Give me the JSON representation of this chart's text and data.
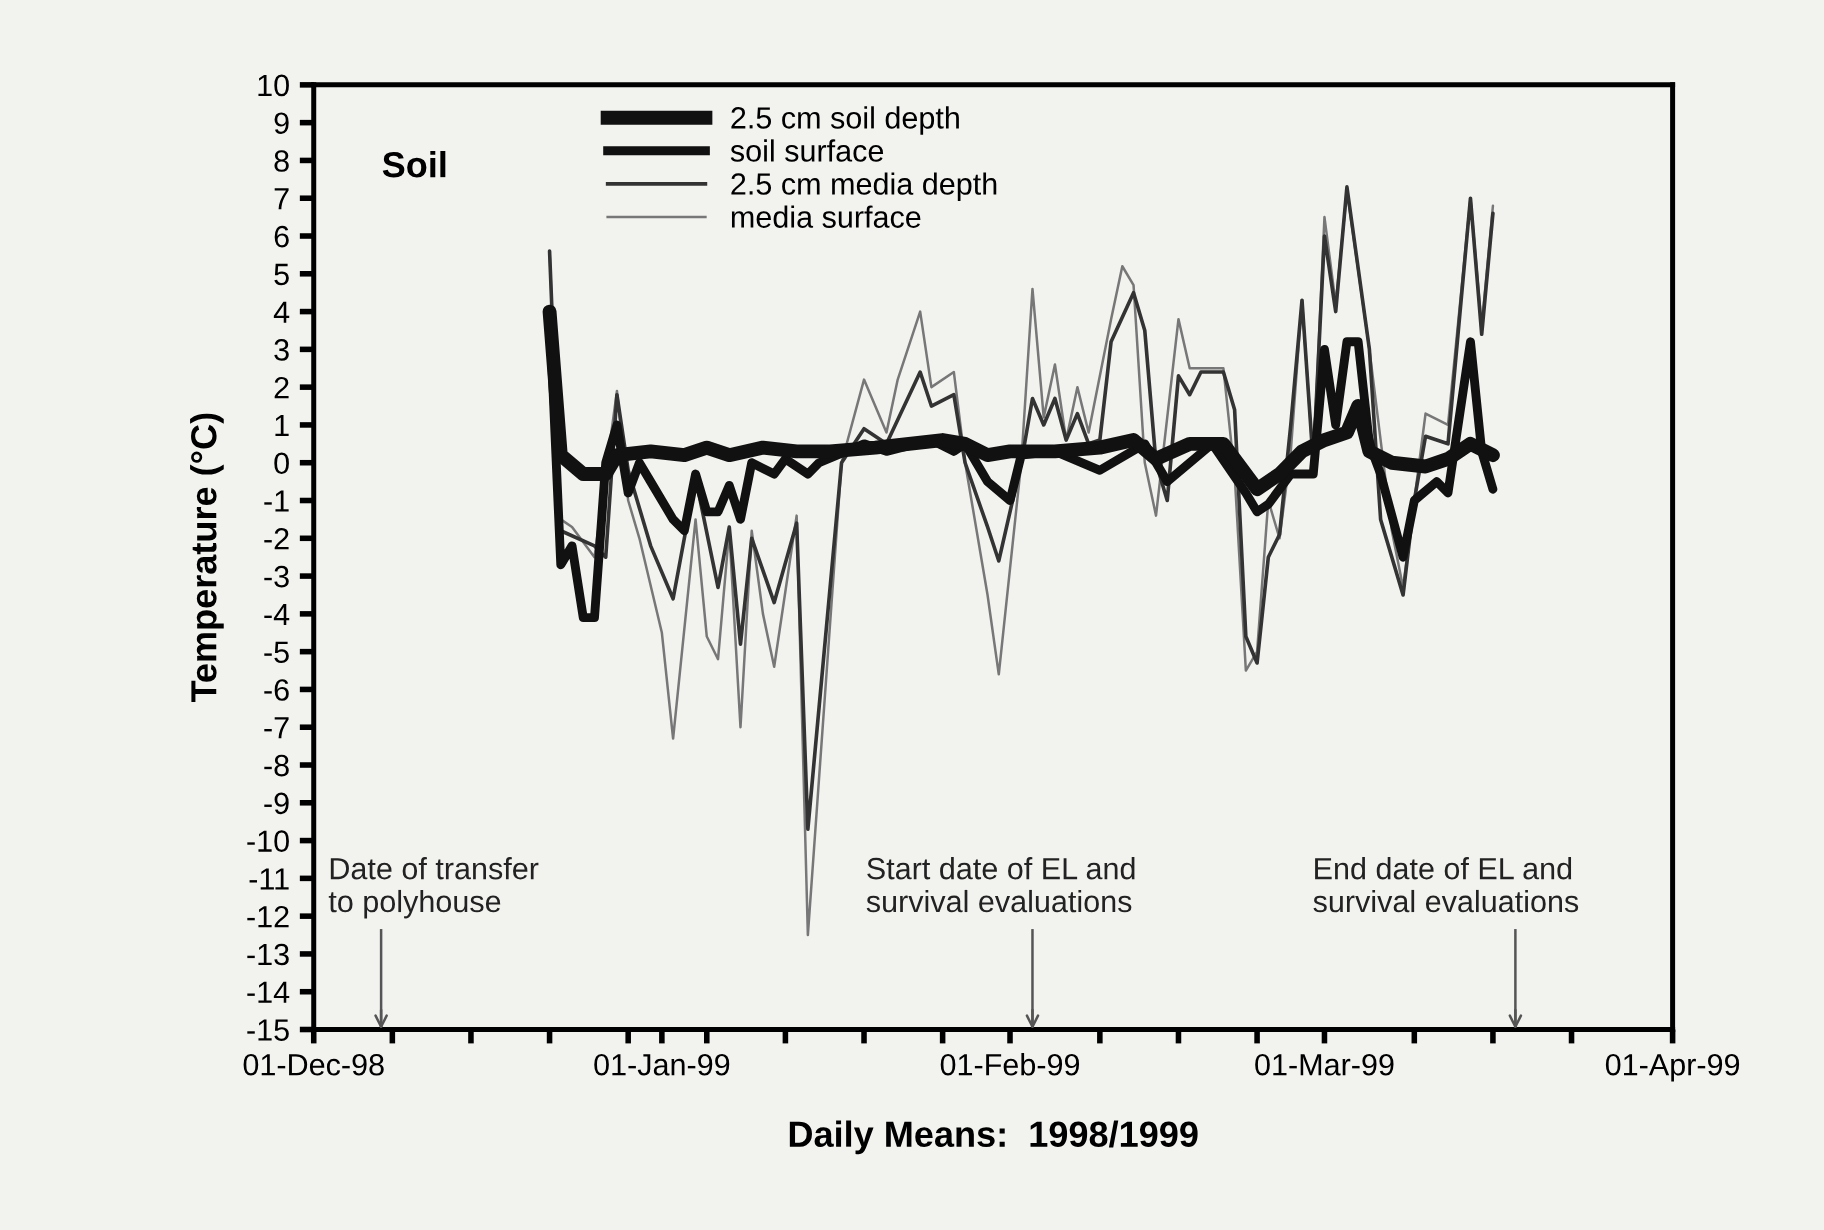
{
  "chart_data": {
    "type": "line",
    "xlabel": "Daily Means:  1998/1999",
    "ylabel": "Temperature (°C)",
    "xlim": [
      "1998-12-01",
      "1999-04-01"
    ],
    "ylim": [
      -15,
      10
    ],
    "yticks": [
      -15,
      -14,
      -13,
      -12,
      -11,
      -10,
      -9,
      -8,
      -7,
      -6,
      -5,
      -4,
      -3,
      -2,
      -1,
      0,
      1,
      2,
      3,
      4,
      5,
      6,
      7,
      8,
      9,
      10
    ],
    "xticks": [
      {
        "value": "1998-12-01",
        "label": "01-Dec-98"
      },
      {
        "value": "1998-12-08",
        "label": null
      },
      {
        "value": "1998-12-15",
        "label": null
      },
      {
        "value": "1998-12-22",
        "label": null
      },
      {
        "value": "1998-12-29",
        "label": null
      },
      {
        "value": "1999-01-01",
        "label": "01-Jan-99"
      },
      {
        "value": "1999-01-05",
        "label": null
      },
      {
        "value": "1999-01-12",
        "label": null
      },
      {
        "value": "1999-01-19",
        "label": null
      },
      {
        "value": "1999-01-26",
        "label": null
      },
      {
        "value": "1999-02-01",
        "label": "01-Feb-99"
      },
      {
        "value": "1999-02-09",
        "label": null
      },
      {
        "value": "1999-02-16",
        "label": null
      },
      {
        "value": "1999-02-23",
        "label": null
      },
      {
        "value": "1999-03-01",
        "label": "01-Mar-99"
      },
      {
        "value": "1999-03-09",
        "label": null
      },
      {
        "value": "1999-03-16",
        "label": null
      },
      {
        "value": "1999-03-23",
        "label": null
      },
      {
        "value": "1999-04-01",
        "label": "01-Apr-99"
      }
    ],
    "grid": false,
    "legend": "top",
    "marker": "none",
    "line_style": "solid",
    "annotations": [
      "Soil"
    ],
    "ref_lines": [
      {
        "axis": "x",
        "value": "1998-12-07",
        "label": "Date of transfer\nto polyhouse",
        "color": "#555555"
      },
      {
        "axis": "x",
        "value": "1999-02-03",
        "label": "Start date of EL and\nsurvival evaluations",
        "color": "#555555"
      },
      {
        "axis": "x",
        "value": "1999-03-18",
        "label": "End date of EL and\nsurvival evaluations",
        "color": "#555555"
      }
    ],
    "series": [
      {
        "name": "2.5 cm soil depth",
        "color": "#111111",
        "x": [
          "1998-12-22",
          "1998-12-23",
          "1998-12-25",
          "1998-12-27",
          "1998-12-28",
          "1998-12-31",
          "1999-01-03",
          "1999-01-05",
          "1999-01-07",
          "1999-01-10",
          "1999-01-13",
          "1999-01-16",
          "1999-01-20",
          "1999-01-23",
          "1999-01-26",
          "1999-01-28",
          "1999-01-30",
          "1999-02-01",
          "1999-02-05",
          "1999-02-09",
          "1999-02-12",
          "1999-02-14",
          "1999-02-17",
          "1999-02-20",
          "1999-02-23",
          "1999-02-25",
          "1999-02-27",
          "1999-03-01",
          "1999-03-03",
          "1999-03-04",
          "1999-03-05",
          "1999-03-07",
          "1999-03-10",
          "1999-03-12",
          "1999-03-14",
          "1999-03-16"
        ],
        "values": [
          4.0,
          0.2,
          -0.3,
          -0.3,
          0.2,
          0.3,
          0.2,
          0.4,
          0.2,
          0.4,
          0.3,
          0.3,
          0.4,
          0.5,
          0.6,
          0.5,
          0.2,
          0.3,
          0.3,
          0.4,
          0.6,
          0.1,
          0.5,
          0.5,
          -0.7,
          -0.3,
          0.3,
          0.6,
          0.8,
          1.5,
          0.3,
          0.0,
          -0.1,
          0.1,
          0.5,
          0.2
        ]
      },
      {
        "name": "soil surface",
        "color": "#111111",
        "x": [
          "1998-12-22",
          "1998-12-23",
          "1998-12-24",
          "1998-12-25",
          "1998-12-26",
          "1998-12-27",
          "1998-12-28",
          "1998-12-29",
          "1998-12-30",
          "1998-12-31",
          "1999-01-02",
          "1999-01-03",
          "1999-01-04",
          "1999-01-05",
          "1999-01-06",
          "1999-01-07",
          "1999-01-08",
          "1999-01-09",
          "1999-01-11",
          "1999-01-12",
          "1999-01-14",
          "1999-01-15",
          "1999-01-19",
          "1999-01-21",
          "1999-01-25",
          "1999-01-27",
          "1999-01-28",
          "1999-01-30",
          "1999-02-01",
          "1999-02-02",
          "1999-02-05",
          "1999-02-09",
          "1999-02-13",
          "1999-02-15",
          "1999-02-19",
          "1999-02-22",
          "1999-02-23",
          "1999-02-24",
          "1999-02-26",
          "1999-02-28",
          "1999-03-01",
          "1999-03-02",
          "1999-03-03",
          "1999-03-04",
          "1999-03-05",
          "1999-03-06",
          "1999-03-08",
          "1999-03-09",
          "1999-03-11",
          "1999-03-12",
          "1999-03-14",
          "1999-03-15",
          "1999-03-16"
        ],
        "values": [
          4.0,
          -2.7,
          -2.2,
          -4.1,
          -4.1,
          0.0,
          1.0,
          -0.8,
          0.0,
          -0.5,
          -1.5,
          -1.8,
          -0.3,
          -1.3,
          -1.3,
          -0.6,
          -1.5,
          0.0,
          -0.3,
          0.1,
          -0.3,
          0.0,
          0.5,
          0.3,
          0.6,
          0.3,
          0.5,
          -0.5,
          -1.0,
          0.2,
          0.3,
          -0.2,
          0.5,
          -0.5,
          0.5,
          -0.8,
          -1.3,
          -1.1,
          -0.3,
          -0.3,
          3.0,
          1.0,
          3.2,
          3.2,
          0.5,
          -0.3,
          -2.5,
          -1.0,
          -0.5,
          -0.8,
          3.2,
          0.3,
          -0.7
        ]
      },
      {
        "name": "2.5 cm media depth",
        "color": "#333333",
        "x": [
          "1998-12-22",
          "1998-12-23",
          "1998-12-26",
          "1998-12-27",
          "1998-12-28",
          "1998-12-29",
          "1998-12-31",
          "1999-01-02",
          "1999-01-04",
          "1999-01-06",
          "1999-01-07",
          "1999-01-08",
          "1999-01-09",
          "1999-01-11",
          "1999-01-13",
          "1999-01-14",
          "1999-01-17",
          "1999-01-19",
          "1999-01-21",
          "1999-01-24",
          "1999-01-25",
          "1999-01-27",
          "1999-01-28",
          "1999-01-30",
          "1999-01-31",
          "1999-02-02",
          "1999-02-03",
          "1999-02-04",
          "1999-02-05",
          "1999-02-06",
          "1999-02-07",
          "1999-02-08",
          "1999-02-09",
          "1999-02-10",
          "1999-02-12",
          "1999-02-13",
          "1999-02-14",
          "1999-02-15",
          "1999-02-16",
          "1999-02-17",
          "1999-02-18",
          "1999-02-20",
          "1999-02-21",
          "1999-02-22",
          "1999-02-23",
          "1999-02-24",
          "1999-02-25",
          "1999-02-26",
          "1999-02-27",
          "1999-02-28",
          "1999-03-01",
          "1999-03-02",
          "1999-03-03",
          "1999-03-05",
          "1999-03-06",
          "1999-03-08",
          "1999-03-09",
          "1999-03-10",
          "1999-03-12",
          "1999-03-14",
          "1999-03-15",
          "1999-03-16"
        ],
        "values": [
          5.6,
          -1.8,
          -2.2,
          -2.5,
          1.8,
          -0.2,
          -2.2,
          -3.6,
          -0.4,
          -3.3,
          -1.7,
          -4.8,
          -2.0,
          -3.7,
          -1.6,
          -9.7,
          0.0,
          0.9,
          0.5,
          2.4,
          1.5,
          1.8,
          0.0,
          -1.7,
          -2.6,
          0.0,
          1.7,
          1.0,
          1.7,
          0.6,
          1.3,
          0.5,
          0.6,
          3.2,
          4.5,
          3.5,
          0.0,
          -1.0,
          2.3,
          1.8,
          2.4,
          2.4,
          1.4,
          -4.6,
          -5.3,
          -2.5,
          -1.9,
          1.0,
          4.3,
          0.0,
          6.0,
          4.0,
          7.3,
          3.0,
          -1.5,
          -3.5,
          -1.0,
          0.7,
          0.5,
          7.0,
          3.4,
          6.6
        ]
      },
      {
        "name": "media surface",
        "color": "#777777",
        "x": [
          "1998-12-22",
          "1998-12-23",
          "1998-12-24",
          "1998-12-26",
          "1998-12-28",
          "1998-12-29",
          "1998-12-30",
          "1999-01-01",
          "1999-01-02",
          "1999-01-04",
          "1999-01-05",
          "1999-01-06",
          "1999-01-07",
          "1999-01-08",
          "1999-01-09",
          "1999-01-10",
          "1999-01-11",
          "1999-01-12",
          "1999-01-13",
          "1999-01-14",
          "1999-01-17",
          "1999-01-19",
          "1999-01-21",
          "1999-01-22",
          "1999-01-24",
          "1999-01-25",
          "1999-01-27",
          "1999-01-28",
          "1999-01-30",
          "1999-01-31",
          "1999-02-02",
          "1999-02-03",
          "1999-02-04",
          "1999-02-05",
          "1999-02-06",
          "1999-02-07",
          "1999-02-08",
          "1999-02-10",
          "1999-02-11",
          "1999-02-12",
          "1999-02-13",
          "1999-02-14",
          "1999-02-16",
          "1999-02-17",
          "1999-02-20",
          "1999-02-21",
          "1999-02-22",
          "1999-02-23",
          "1999-02-24",
          "1999-02-25",
          "1999-02-26",
          "1999-02-27",
          "1999-02-28",
          "1999-03-01",
          "1999-03-02",
          "1999-03-03",
          "1999-03-05",
          "1999-03-07",
          "1999-03-08",
          "1999-03-09",
          "1999-03-10",
          "1999-03-12",
          "1999-03-14",
          "1999-03-15",
          "1999-03-16"
        ],
        "values": [
          5.6,
          -1.5,
          -1.7,
          -2.5,
          1.9,
          -1.0,
          -2.0,
          -4.5,
          -7.3,
          -1.5,
          -4.6,
          -5.2,
          -1.8,
          -7.0,
          -1.8,
          -4.0,
          -5.4,
          -3.4,
          -1.4,
          -12.5,
          0.0,
          2.2,
          0.8,
          2.2,
          4.0,
          2.0,
          2.4,
          0.0,
          -3.5,
          -5.6,
          0.0,
          4.6,
          1.2,
          2.6,
          0.6,
          2.0,
          0.8,
          3.8,
          5.2,
          4.7,
          0.0,
          -1.4,
          3.8,
          2.5,
          2.5,
          -0.3,
          -5.5,
          -5.0,
          -1.0,
          -2.0,
          0.3,
          4.3,
          0.0,
          6.5,
          4.2,
          7.2,
          3.0,
          -1.8,
          -3.3,
          -1.0,
          1.3,
          1.0,
          7.0,
          3.6,
          6.8
        ]
      }
    ]
  }
}
